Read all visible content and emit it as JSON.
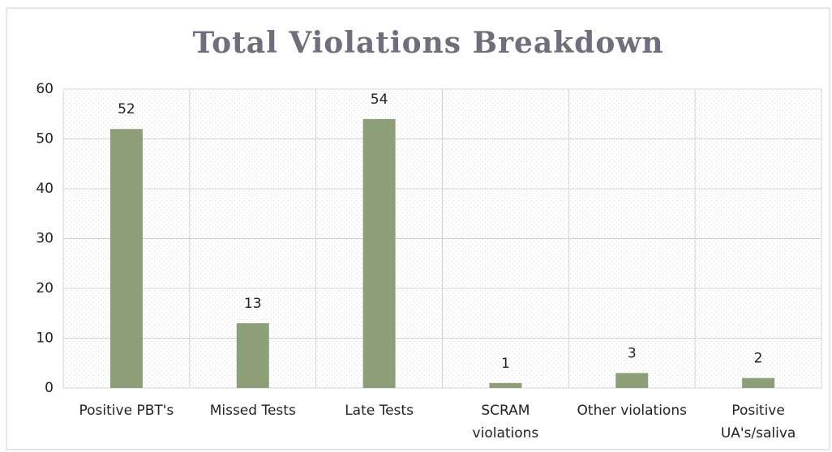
{
  "chart_data": {
    "type": "bar",
    "title": "Total Violations Breakdown",
    "categories": [
      "Positive PBT's",
      "Missed Tests",
      "Late Tests",
      "SCRAM violations",
      "Other violations",
      "Positive UA's/saliva"
    ],
    "values": [
      52,
      13,
      54,
      1,
      3,
      2
    ],
    "color": "#8c9f77",
    "ylim": [
      0,
      60
    ],
    "yticks": [
      0,
      10,
      20,
      30,
      40,
      50,
      60
    ],
    "grid": true
  }
}
